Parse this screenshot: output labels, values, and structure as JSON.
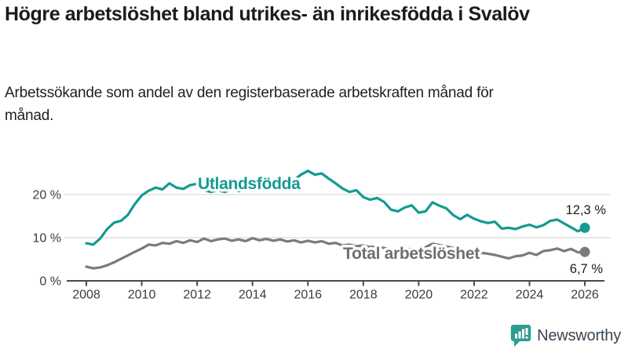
{
  "header": {
    "title": "Högre arbetslöshet bland utrikes- än inrikesfödda i Svalöv",
    "subtitle": "Arbetssökande som andel av den registerbaserade arbetskraften månad för månad."
  },
  "chart_data": {
    "type": "line",
    "title": "Högre arbetslöshet bland utrikes- än inrikesfödda i Svalöv",
    "subtitle": "Arbetssökande som andel av den registerbaserade arbetskraften månad för månad.",
    "x_start": 2008,
    "x_step": 0.25,
    "x_tick_labels": [
      "2008",
      "2010",
      "2012",
      "2014",
      "2016",
      "2018",
      "2020",
      "2022",
      "2024",
      "2026"
    ],
    "yticks": [
      {
        "value": 0,
        "label": "0 %"
      },
      {
        "value": 10,
        "label": "10 %"
      },
      {
        "value": 20,
        "label": "20 %"
      }
    ],
    "ylim": [
      0,
      27
    ],
    "xlim": [
      2008,
      2026
    ],
    "grid": "horizontal",
    "legend_position": "inline-labels",
    "colors": {
      "accent_teal": "#149a91",
      "neutral_gray": "#7b7b7b",
      "grid": "#d9d9d9",
      "axis": "#4a4a4a"
    },
    "series": [
      {
        "name": "Utlandsfödda",
        "color": "#149a91",
        "label_color": "#149a91",
        "end_label": "12,3 %",
        "end_value": 12.3,
        "values": [
          8.7,
          8.4,
          9.8,
          12.0,
          13.5,
          13.9,
          15.3,
          17.8,
          19.8,
          20.9,
          21.6,
          21.2,
          22.6,
          21.6,
          21.3,
          22.2,
          22.5,
          21.0,
          20.6,
          21.0,
          20.6,
          21.2,
          20.8,
          21.4,
          21.2,
          21.8,
          22.1,
          21.7,
          22.4,
          23.0,
          23.4,
          24.6,
          25.5,
          24.6,
          24.9,
          23.7,
          22.6,
          21.4,
          20.6,
          21.0,
          19.4,
          18.8,
          19.2,
          18.3,
          16.5,
          16.1,
          17.0,
          17.5,
          15.8,
          16.1,
          18.2,
          17.4,
          16.8,
          15.2,
          14.3,
          15.3,
          14.4,
          13.8,
          13.4,
          13.7,
          12.1,
          12.3,
          12.0,
          12.6,
          13.0,
          12.4,
          12.9,
          13.9,
          14.2,
          13.3,
          12.4,
          11.5,
          12.3
        ]
      },
      {
        "name": "Total arbetslöshet",
        "color": "#7b7b7b",
        "label_color": "#6f6f6f",
        "end_label": "6,7 %",
        "end_value": 6.7,
        "values": [
          3.3,
          2.9,
          3.1,
          3.6,
          4.3,
          5.1,
          5.9,
          6.7,
          7.5,
          8.4,
          8.2,
          8.8,
          8.6,
          9.2,
          8.8,
          9.4,
          9.0,
          9.8,
          9.2,
          9.6,
          9.8,
          9.3,
          9.6,
          9.2,
          9.9,
          9.4,
          9.7,
          9.3,
          9.6,
          9.1,
          9.4,
          8.9,
          9.3,
          8.9,
          9.2,
          8.6,
          8.8,
          8.2,
          8.4,
          8.0,
          8.2,
          7.8,
          8.0,
          7.6,
          7.4,
          7.2,
          7.5,
          7.3,
          7.2,
          7.8,
          8.6,
          8.3,
          8.0,
          7.6,
          7.2,
          7.0,
          6.8,
          6.5,
          6.3,
          6.0,
          5.6,
          5.2,
          5.7,
          5.9,
          6.5,
          6.0,
          6.9,
          7.1,
          7.5,
          6.9,
          7.4,
          6.6,
          6.7
        ]
      }
    ]
  },
  "branding": {
    "name": "Newsworthy",
    "icon": "newsworthy-speech-bubble-chart-icon",
    "logo_color": "#2d9c93",
    "text_color": "#394551"
  }
}
